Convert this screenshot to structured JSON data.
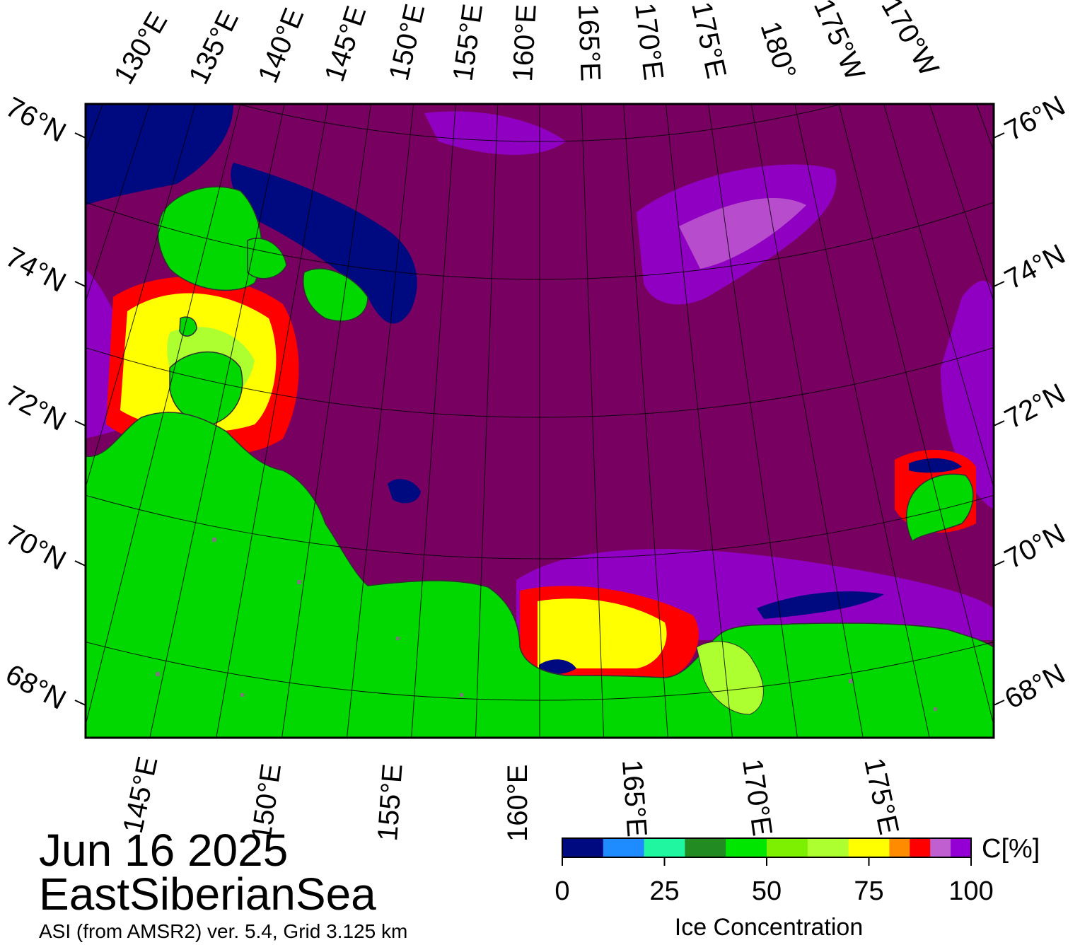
{
  "date": "Jun 16 2025",
  "region": "EastSiberianSea",
  "source": "ASI (from AMSR2) ver. 5.4,  Grid 3.125 km",
  "colorbar": {
    "unit": "C[%]",
    "title": "Ice Concentration",
    "ticks": [
      "0",
      "25",
      "50",
      "75",
      "100"
    ],
    "colors": [
      "#000a80",
      "#1e8cff",
      "#20f5a0",
      "#228b22",
      "#00e600",
      "#7cf000",
      "#adff2f",
      "#ffff00",
      "#ff8c00",
      "#ff0000",
      "#c060d0",
      "#9400d3",
      "#780060"
    ]
  },
  "map": {
    "colors": {
      "water": "#780060",
      "land": "#00d800",
      "ice_dark": "#000a80",
      "ice_purple": "#9400d3",
      "ice_lilac": "#c060d0",
      "ice_yellow": "#ffff00",
      "ice_red": "#ff0000",
      "ice_lime": "#adff2f",
      "grid": "#000000"
    },
    "lat_labels_left": [
      "76°N",
      "74°N",
      "72°N",
      "70°N",
      "68°N"
    ],
    "lat_labels_right": [
      "76°N",
      "74°N",
      "72°N",
      "70°N",
      "68°N"
    ],
    "lon_labels_top": [
      "130°E",
      "135°E",
      "140°E",
      "145°E",
      "150°E",
      "155°E",
      "160°E",
      "165°E",
      "170°E",
      "175°E",
      "180°",
      "175°W",
      "170°W"
    ],
    "lon_labels_bottom": [
      "145°E",
      "150°E",
      "155°E",
      "160°E",
      "165°E",
      "170°E",
      "175°E"
    ]
  }
}
